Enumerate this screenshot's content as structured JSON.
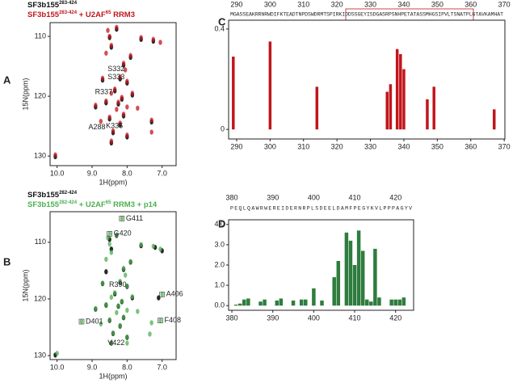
{
  "chart_data": [
    {
      "type": "scatter",
      "panel": "A",
      "xlabel": "1H(ppm)",
      "ylabel": "15N(ppm)",
      "xlim": [
        10.2,
        6.6
      ],
      "ylim": [
        131.6,
        107.7
      ],
      "xticks": [
        {
          "value": 10,
          "label": "10.0"
        },
        {
          "value": 9,
          "label": "9.0"
        },
        {
          "value": 8,
          "label": "8.0"
        },
        {
          "value": 7,
          "label": "7.0"
        }
      ],
      "yticks": [
        110,
        120,
        130
      ],
      "series": [
        {
          "label_parts": [
            {
              "text": "SF3b155"
            },
            {
              "sup": "283-424"
            }
          ],
          "color": "#111111",
          "x": [
            8.5,
            8.45,
            8.3,
            7.6,
            7.25,
            8.1,
            8.2,
            8.0,
            8.35,
            8.15,
            8.25,
            8.1,
            8.5,
            8.6,
            7.85,
            8.7,
            8.9,
            8.2,
            8.4,
            8.0,
            7.3,
            10.05,
            8.45,
            7.9
          ],
          "y": [
            110.2,
            111.8,
            108.8,
            110.5,
            110.8,
            114.8,
            117.1,
            117.8,
            119.1,
            120.5,
            121.3,
            123.3,
            123.8,
            121.1,
            119.8,
            117.3,
            121.8,
            124.8,
            126.1,
            126.8,
            124.3,
            130.1,
            127.8,
            113.5
          ]
        },
        {
          "label_parts": [
            {
              "text": "SF3b155"
            },
            {
              "sup": "283-424"
            },
            {
              "text": " + U2AF"
            },
            {
              "sup": "65"
            },
            {
              "text": " RRM3"
            }
          ],
          "color": "#c0161c",
          "x": [
            8.55,
            8.5,
            8.45,
            8.3,
            7.6,
            7.25,
            7.05,
            8.1,
            8.05,
            8.2,
            8.0,
            8.35,
            8.45,
            8.15,
            8.25,
            8.0,
            8.3,
            8.1,
            8.5,
            8.6,
            7.85,
            7.7,
            8.7,
            8.9,
            8.2,
            8.4,
            8.0,
            7.3,
            7.3,
            10.05,
            8.45,
            8.75,
            7.9,
            8.6
          ],
          "y": [
            109,
            110,
            111.5,
            108.5,
            110.2,
            110.5,
            111,
            114.5,
            115.6,
            116.8,
            117.5,
            118.8,
            119.5,
            120.2,
            121,
            121.8,
            122.2,
            123,
            123.5,
            120.8,
            119.5,
            122,
            117,
            121.5,
            124.5,
            125.8,
            126.5,
            124,
            126,
            129.8,
            127.5,
            124.2,
            113.2,
            112.8
          ]
        }
      ],
      "annotations": [
        {
          "text": "S332",
          "x": 8.0,
          "y": 115.5
        },
        {
          "text": "S333",
          "x": 8.0,
          "y": 116.8
        },
        {
          "text": "R337",
          "x": 8.35,
          "y": 119.3
        },
        {
          "text": "A288",
          "x": 8.55,
          "y": 125.2
        },
        {
          "text": "K335",
          "x": 8.05,
          "y": 125.0
        }
      ]
    },
    {
      "type": "scatter",
      "panel": "B",
      "xlabel": "1H(ppm)",
      "ylabel": "15N(ppm)",
      "xlim": [
        10.2,
        6.6
      ],
      "ylim": [
        130.7,
        104.6
      ],
      "xticks": [
        {
          "value": 10,
          "label": "10.0"
        },
        {
          "value": 9,
          "label": "9.0"
        },
        {
          "value": 8,
          "label": "8.0"
        },
        {
          "value": 7,
          "label": "7.0"
        }
      ],
      "yticks": [
        110,
        120,
        130
      ],
      "series": [
        {
          "label_parts": [
            {
              "text": "SF3b155"
            },
            {
              "sup": "282-424"
            }
          ],
          "color": "#111111",
          "x": [
            8.5,
            8.45,
            8.3,
            7.6,
            7.2,
            7.0,
            8.1,
            8.2,
            8.0,
            8.35,
            8.15,
            8.25,
            8.1,
            8.5,
            8.6,
            7.85,
            8.7,
            8.9,
            8.2,
            8.4,
            8.0,
            10.05,
            8.45,
            7.9,
            7.1,
            8.6
          ],
          "y": [
            109.5,
            111.2,
            108.8,
            110.6,
            110.9,
            111.5,
            114.8,
            117.1,
            117.8,
            119.1,
            120.5,
            121.3,
            123.3,
            123.8,
            121.1,
            119.8,
            117.3,
            121.8,
            124.8,
            126.1,
            126.8,
            129.9,
            127.8,
            113.5,
            119.8,
            115.2
          ]
        },
        {
          "label_parts": [
            {
              "text": "SF3b155"
            },
            {
              "sup": "282-424"
            },
            {
              "text": " + U2AF"
            },
            {
              "sup": "65"
            },
            {
              "text": " RRM3 + p14"
            }
          ],
          "color": "#4caf50",
          "x": [
            8.55,
            8.5,
            8.45,
            8.3,
            7.6,
            7.25,
            7.05,
            8.1,
            8.05,
            8.2,
            8.0,
            8.35,
            8.45,
            8.15,
            8.25,
            8.0,
            8.3,
            8.1,
            8.5,
            8.6,
            7.85,
            7.7,
            8.7,
            8.9,
            8.2,
            8.4,
            8.0,
            7.3,
            7.35,
            10.0,
            8.45,
            8.75,
            7.9,
            8.6,
            8.15,
            8.5,
            7.0,
            7.05,
            9.3,
            8.0
          ],
          "y": [
            109.2,
            110.3,
            111.8,
            108.7,
            110.4,
            110.7,
            111.2,
            114.6,
            115.8,
            116.9,
            117.7,
            118.9,
            119.7,
            120.4,
            121.2,
            122,
            122.4,
            123.2,
            123.7,
            121,
            119.6,
            122.2,
            117.2,
            121.7,
            124.7,
            126,
            126.7,
            124.2,
            126.2,
            129.6,
            127.7,
            124.4,
            113.4,
            113,
            105.8,
            108.5,
            119.2,
            123.8,
            124,
            127.8
          ]
        }
      ],
      "annotations": [
        {
          "text": "G411",
          "x": 8.15,
          "y": 105.8,
          "boxed": true
        },
        {
          "text": "G420",
          "x": 8.5,
          "y": 108.5,
          "boxed": true
        },
        {
          "text": "R390",
          "x": 7.95,
          "y": 117.5
        },
        {
          "text": "A406",
          "x": 7.0,
          "y": 119.2,
          "boxed": true
        },
        {
          "text": "F408",
          "x": 7.05,
          "y": 123.8,
          "boxed": true
        },
        {
          "text": "D401",
          "x": 9.3,
          "y": 124.0,
          "boxed": true
        },
        {
          "text": "V422",
          "x": 8.0,
          "y": 127.8
        }
      ]
    },
    {
      "type": "bar",
      "panel": "C",
      "color": "#c0161c",
      "sequence": "MGASSEAKRRNRWDIFKTEADTNPDSWDRMTSPIRKIDDSSGEYISDGASRPSNHPETATASSMHGSIPVLTSNATPLGTAVKAMHAT",
      "x": [
        289,
        300,
        314,
        335,
        336,
        338,
        339,
        340,
        347,
        349,
        367
      ],
      "values": [
        0.29,
        0.35,
        0.17,
        0.15,
        0.18,
        0.32,
        0.3,
        0.24,
        0.12,
        0.17,
        0.08
      ],
      "xlim": [
        287.6,
        370.2
      ],
      "ylim": [
        -0.038,
        0.435
      ],
      "xticks": [
        290,
        300,
        310,
        320,
        330,
        340,
        350,
        360,
        370
      ],
      "yticks": [
        0,
        0.4
      ]
    },
    {
      "type": "bar",
      "panel": "D",
      "color": "#2e7d3e",
      "sequence": "PEQLQAWRWEREIDERNRPLSDEELDAMFPEGYKVLPPPAGYV",
      "x": [
        381,
        382,
        383,
        384,
        387,
        388,
        391,
        392,
        395,
        397,
        398,
        400,
        402,
        405,
        406,
        408,
        409,
        410,
        411,
        412,
        413,
        414,
        415,
        416,
        419,
        420,
        421,
        422
      ],
      "values": [
        0.05,
        0.1,
        0.3,
        0.35,
        0.2,
        0.3,
        0.25,
        0.35,
        0.25,
        0.3,
        0.3,
        0.85,
        0.25,
        1.4,
        2.2,
        3.6,
        3.2,
        2.0,
        3.7,
        2.7,
        0.3,
        0.2,
        2.8,
        0.4,
        0.3,
        0.3,
        0.3,
        0.4
      ],
      "xlim": [
        379.2,
        424.4
      ],
      "ylim": [
        -0.23,
        4.23
      ],
      "xticks": [
        380,
        390,
        400,
        410,
        420
      ],
      "yticks": [
        {
          "value": 0,
          "label": "0.0"
        },
        {
          "value": 1,
          "label": "1.0"
        },
        {
          "value": 2,
          "label": "2.0"
        },
        {
          "value": 3,
          "label": "3.0"
        },
        {
          "value": 4,
          "label": "4.0"
        }
      ]
    }
  ]
}
